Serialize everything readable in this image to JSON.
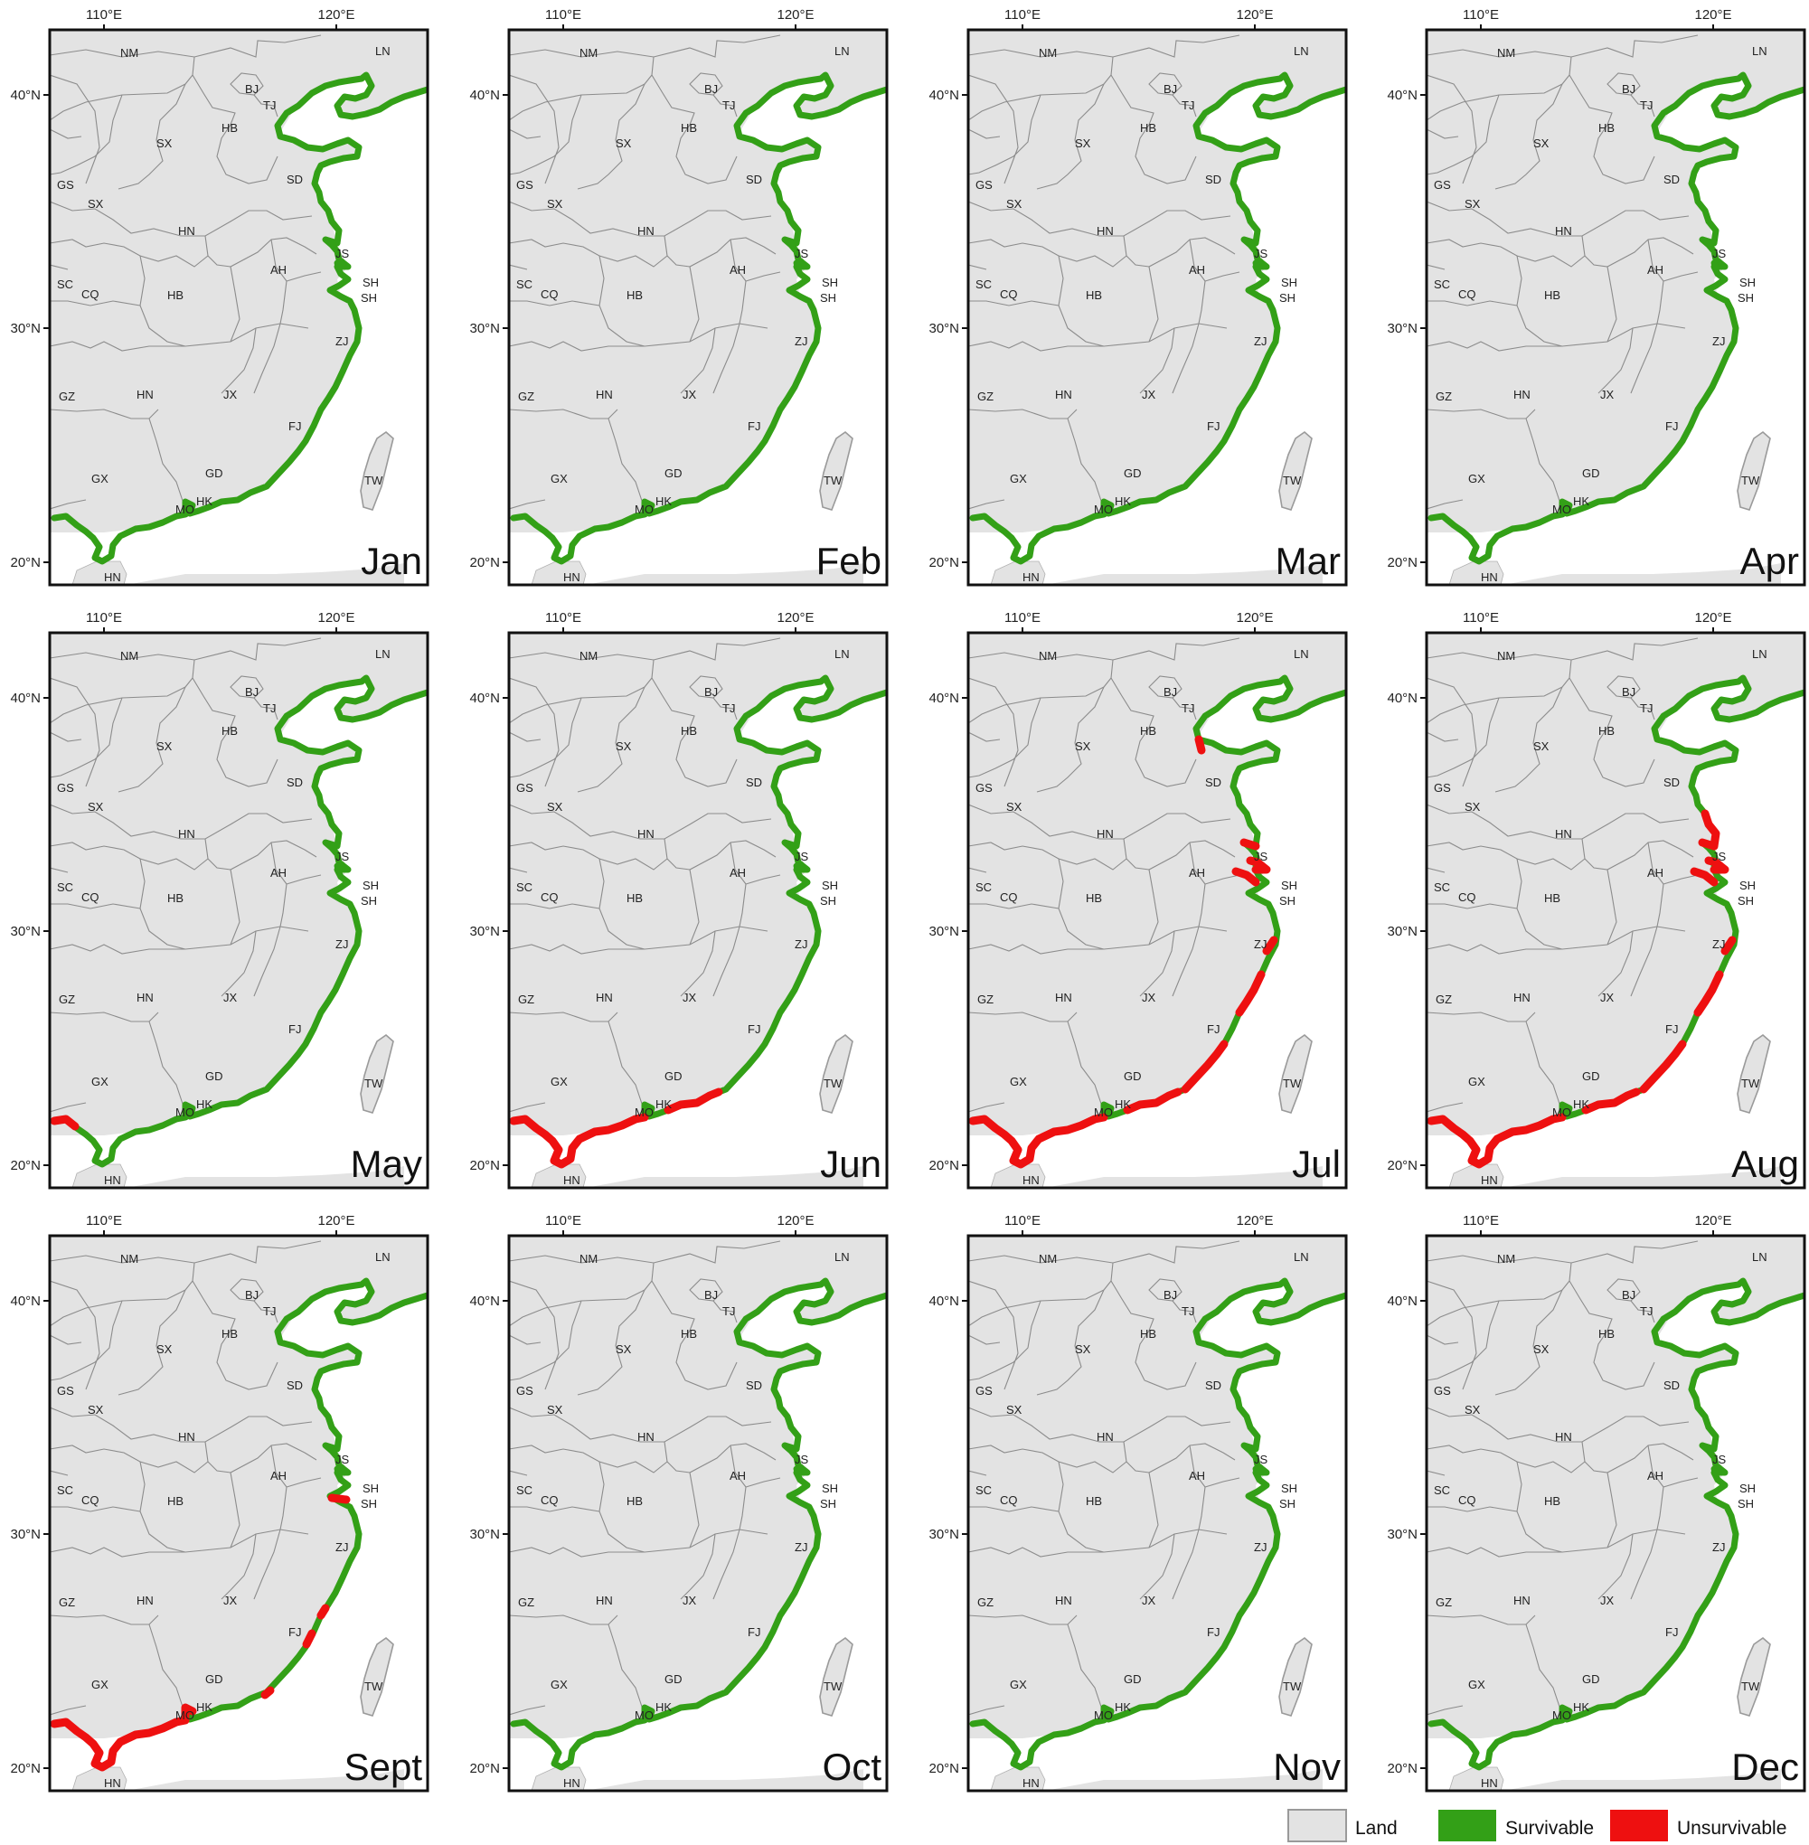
{
  "axes": {
    "lon_labels": [
      "110°E",
      "120°E"
    ],
    "lat_labels": [
      "40°N",
      "30°N",
      "20°N"
    ]
  },
  "provinces": [
    "NM",
    "LN",
    "BJ",
    "TJ",
    "HB",
    "SX",
    "SD",
    "GS",
    "SX",
    "HN",
    "JS",
    "AH",
    "SC",
    "CQ",
    "HB",
    "SH",
    "SH",
    "ZJ",
    "GZ",
    "HN",
    "JX",
    "FJ",
    "GX",
    "GD",
    "TW",
    "HK",
    "MO",
    "HN"
  ],
  "panels": [
    {
      "month": "Jan",
      "unsurvivable": []
    },
    {
      "month": "Feb",
      "unsurvivable": []
    },
    {
      "month": "Mar",
      "unsurvivable": []
    },
    {
      "month": "Apr",
      "unsurvivable": []
    },
    {
      "month": "May",
      "unsurvivable": [
        "far-south-west"
      ]
    },
    {
      "month": "Jun",
      "unsurvivable": [
        "south",
        "guangdong-east"
      ]
    },
    {
      "month": "Jul",
      "unsurvivable": [
        "south",
        "guangdong-east",
        "fujian",
        "zhejiang",
        "shanghai",
        "bohai-west"
      ]
    },
    {
      "month": "Aug",
      "unsurvivable": [
        "south",
        "guangdong-east",
        "fujian",
        "zhejiang",
        "shanghai",
        "jiangsu"
      ]
    },
    {
      "month": "Sept",
      "unsurvivable": [
        "south-west",
        "fujian-spots",
        "shanghai-spot"
      ]
    },
    {
      "month": "Oct",
      "unsurvivable": []
    },
    {
      "month": "Nov",
      "unsurvivable": []
    },
    {
      "month": "Dec",
      "unsurvivable": []
    }
  ],
  "legend": {
    "items": [
      {
        "label": "Land",
        "color": "#e3e3e3"
      },
      {
        "label": "Survivable",
        "color": "#33a017"
      },
      {
        "label": "Unsurvivable",
        "color": "#ee1010"
      }
    ]
  }
}
